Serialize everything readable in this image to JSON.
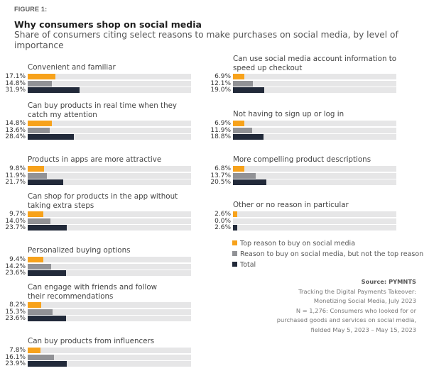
{
  "figure_label": "FIGURE 1:",
  "title": "Why consumers shop on social media",
  "subtitle": "Share of consumers citing select reasons to make purchases on social media, by level of importance",
  "colors": {
    "top_reason": "#f7a21b",
    "not_top_reason": "#919296",
    "total": "#222a3a",
    "track": "#e6e6e7"
  },
  "chart_data": {
    "type": "bar",
    "orientation": "horizontal",
    "title": "Why consumers shop on social media",
    "subtitle": "Share of consumers citing select reasons to make purchases on social media, by level of importance",
    "xlim": [
      0,
      100
    ],
    "unit": "%",
    "grid": false,
    "legend_position": "bottom-right",
    "series_names": [
      "Top reason to buy on social media",
      "Reason to buy on social media, but not the top reason",
      "Total"
    ],
    "categories": [
      "Convenient and familiar",
      "Can buy products in real time when they catch my attention",
      "Products in apps are more attractive",
      "Can shop for products in the app without taking extra steps",
      "Personalized buying options",
      "Can engage with friends and follow their recommendations",
      "Can buy products from influencers",
      "Can use social media account information to speed up checkout",
      "Not having to sign up or log in",
      "More compelling product descriptions",
      "Other or no reason in particular"
    ],
    "series": [
      {
        "name": "Top reason to buy on social media",
        "values": [
          17.1,
          14.8,
          9.8,
          9.7,
          9.4,
          8.2,
          7.8,
          6.9,
          6.9,
          6.8,
          2.6
        ]
      },
      {
        "name": "Reason to buy on social media, but not the top reason",
        "values": [
          14.8,
          13.6,
          11.9,
          14.0,
          14.2,
          15.3,
          16.1,
          12.1,
          11.9,
          13.7,
          0.0
        ]
      },
      {
        "name": "Total",
        "values": [
          31.9,
          28.4,
          21.7,
          23.7,
          23.6,
          23.6,
          23.9,
          19.0,
          18.8,
          20.5,
          2.6
        ]
      }
    ],
    "value_labels": [
      [
        "17.1%",
        "14.8%",
        "31.9%"
      ],
      [
        "14.8%",
        "13.6%",
        "28.4%"
      ],
      [
        "9.8%",
        "11.9%",
        "21.7%"
      ],
      [
        "9.7%",
        "14.0%",
        "23.7%"
      ],
      [
        "9.4%",
        "14.2%",
        "23.6%"
      ],
      [
        "8.2%",
        "15.3%",
        "23.6%"
      ],
      [
        "7.8%",
        "16.1%",
        "23.9%"
      ],
      [
        "6.9%",
        "12.1%",
        "19.0%"
      ],
      [
        "6.9%",
        "11.9%",
        "18.8%"
      ],
      [
        "6.8%",
        "13.7%",
        "20.5%"
      ],
      [
        "2.6%",
        "0.0%",
        "2.6%"
      ]
    ],
    "panel_labels": [
      [
        "Convenient and familiar"
      ],
      [
        "Can buy products in real time when they",
        "catch my attention"
      ],
      [
        "Products in apps are more attractive"
      ],
      [
        "Can shop for products in the app without",
        "taking extra steps"
      ],
      [
        "Personalized buying options"
      ],
      [
        "Can engage with friends and follow",
        "their recommendations"
      ],
      [
        "Can buy products from influencers"
      ],
      [
        "Can use social media account information to",
        "speed up checkout"
      ],
      [
        "Not having to sign up or log in"
      ],
      [
        "More compelling product descriptions"
      ],
      [
        "Other or no reason in particular"
      ]
    ]
  },
  "legend": [
    {
      "label": "Top reason to buy on social media",
      "color": "#f7a21b"
    },
    {
      "label": "Reason to buy on social media, but not the top reason",
      "color": "#919296"
    },
    {
      "label": "Total",
      "color": "#222a3a"
    }
  ],
  "source": {
    "title": "Source: PYMNTS",
    "lines": [
      "Tracking the Digital Payments Takeover:",
      "Monetizing Social Media, July 2023",
      "N = 1,276: Consumers who looked for or",
      "purchased goods and services on social media,",
      "fielded May 5, 2023 – May 15, 2023"
    ]
  }
}
